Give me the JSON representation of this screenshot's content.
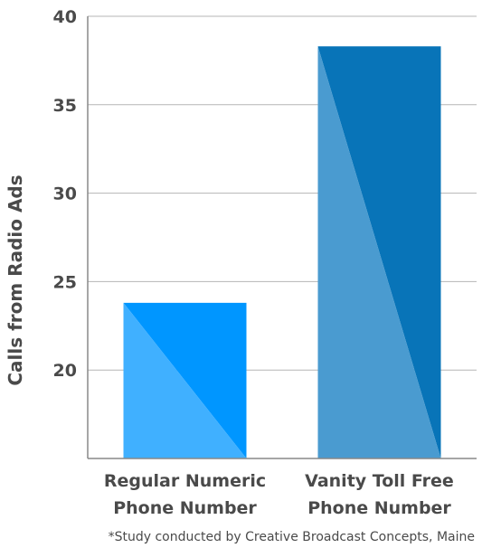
{
  "chart_data": {
    "type": "bar",
    "categories": [
      [
        "Regular Numeric",
        "Phone Number"
      ],
      [
        "Vanity Toll Free",
        "Phone Number"
      ]
    ],
    "values": [
      23.8,
      38.3
    ],
    "ylabel": "Calls from Radio Ads",
    "ylim": [
      15,
      40
    ],
    "yticks": [
      20,
      25,
      30,
      35,
      40
    ],
    "grid": true,
    "colors": {
      "bar_light": [
        "#40b0ff",
        "#4a9bd0"
      ],
      "bar_dark": [
        "#0096ff",
        "#0874b8"
      ],
      "grid": "#b5b5b5",
      "axis": "#888888"
    }
  },
  "footnote": "*Study conducted by Creative Broadcast Concepts, Maine"
}
